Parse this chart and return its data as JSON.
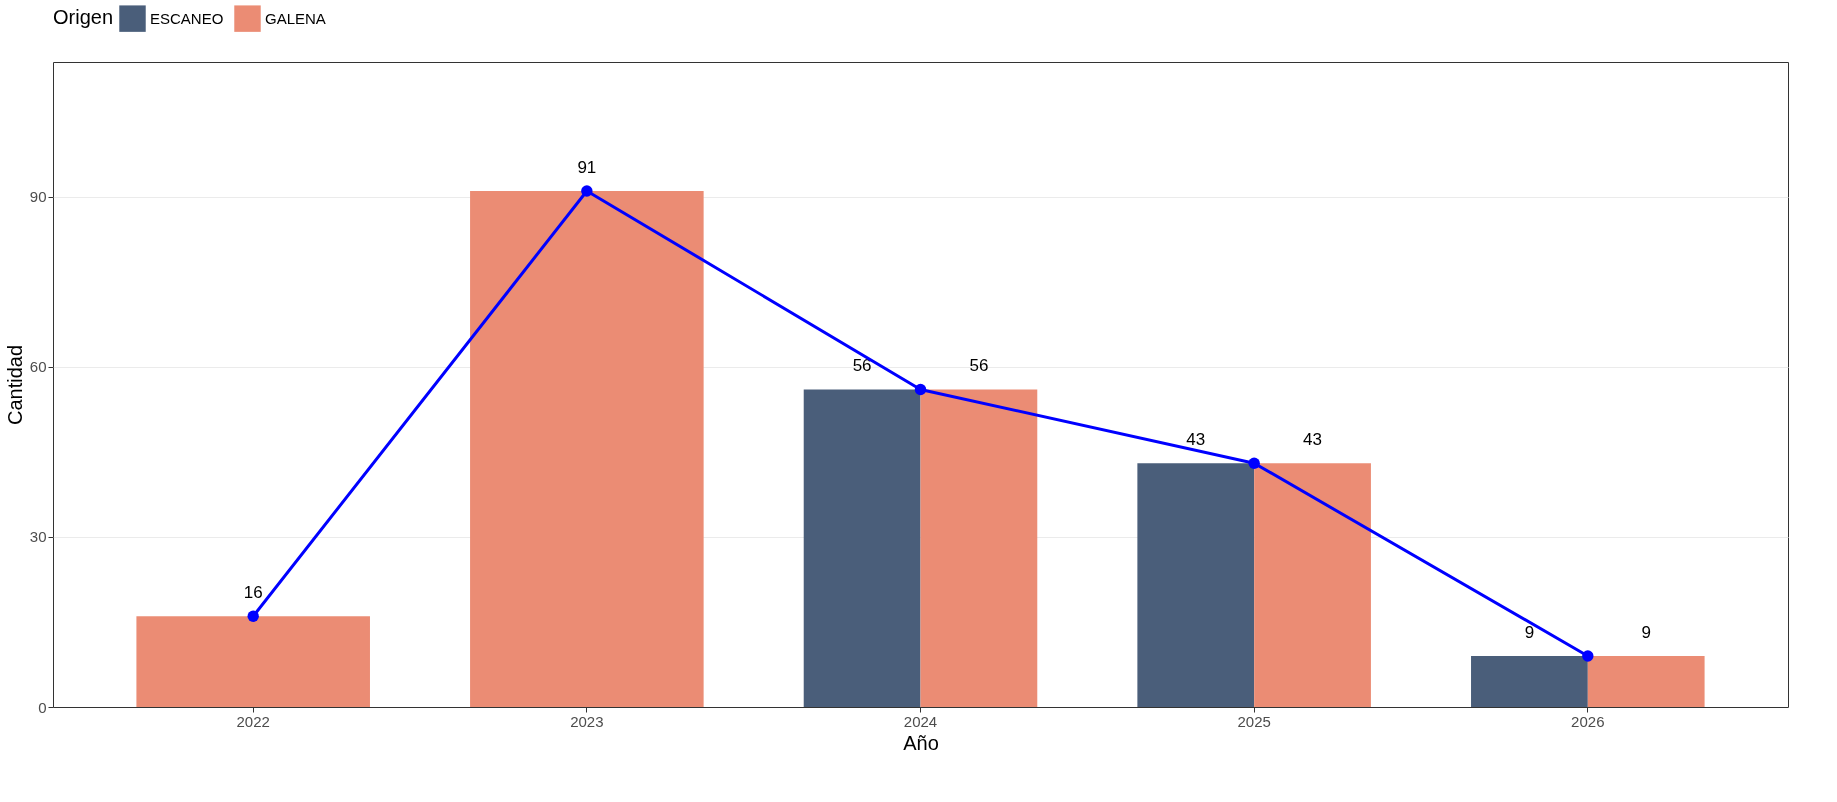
{
  "chart_data": {
    "type": "bar",
    "xlabel": "Año",
    "ylabel": "Cantidad",
    "legend_title": "Origen",
    "legend": "top",
    "categories": [
      "2022",
      "2023",
      "2024",
      "2025",
      "2026"
    ],
    "series": [
      {
        "name": "ESCANEO",
        "color": "#4a5e7a",
        "values": [
          null,
          null,
          56,
          43,
          9
        ],
        "value_labels": [
          null,
          null,
          "56",
          "43",
          "9"
        ]
      },
      {
        "name": "GALENA",
        "color": "#eb8c74",
        "values": [
          16,
          91,
          56,
          43,
          9
        ],
        "value_labels": [
          "16",
          "91",
          "56",
          "43",
          "9"
        ]
      },
      {
        "type": "line",
        "color": "#0000ff",
        "marker": "circle",
        "values": [
          16,
          91,
          56,
          43,
          9
        ]
      }
    ],
    "ylim": [
      0,
      113.75
    ],
    "yticks": [
      0,
      30,
      60,
      90
    ],
    "grid": "y"
  }
}
